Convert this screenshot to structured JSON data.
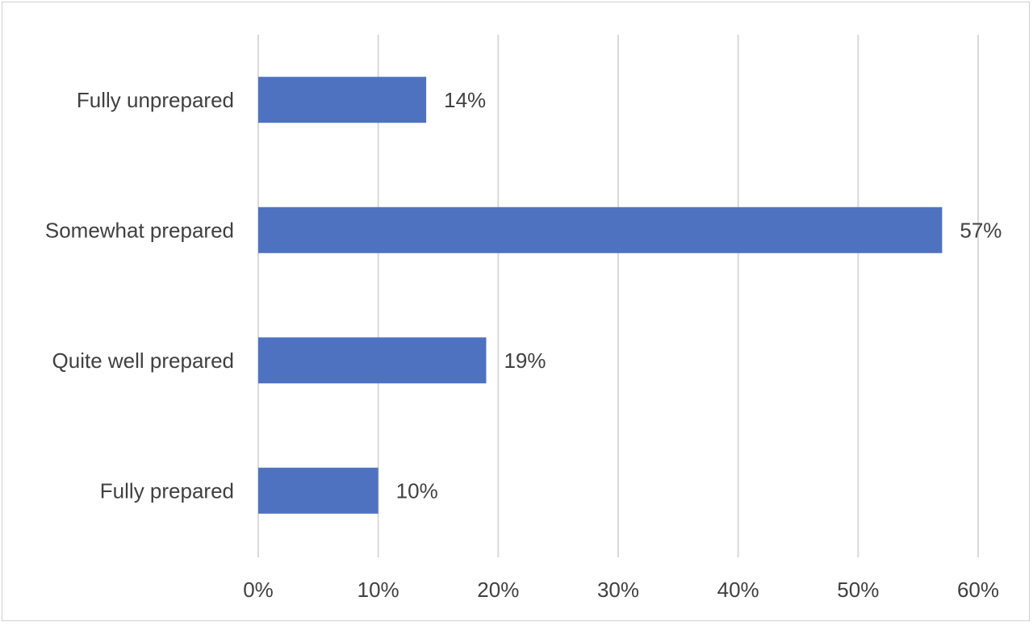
{
  "chart_data": {
    "type": "bar",
    "orientation": "horizontal",
    "title": "",
    "xlabel": "",
    "ylabel": "",
    "categories": [
      "Fully unprepared",
      "Somewhat prepared",
      "Quite well prepared",
      "Fully prepared"
    ],
    "values": [
      14,
      57,
      19,
      10
    ],
    "value_labels": [
      "14%",
      "57%",
      "19%",
      "10%"
    ],
    "xlim": [
      0,
      60
    ],
    "x_ticks": [
      0,
      10,
      20,
      30,
      40,
      50,
      60
    ],
    "x_tick_labels": [
      "0%",
      "10%",
      "20%",
      "30%",
      "40%",
      "50%",
      "60%"
    ],
    "grid": "vertical",
    "legend": "none",
    "bar_color": "#4e72c0",
    "grid_color": "#d9d9d9"
  }
}
